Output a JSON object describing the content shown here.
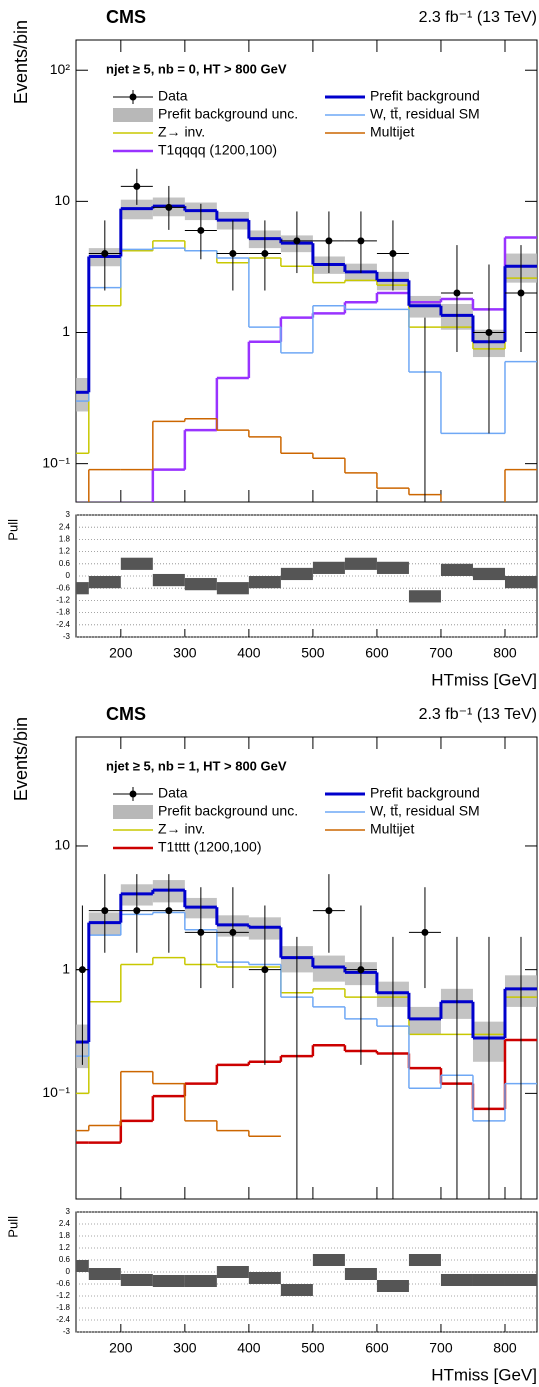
{
  "chart_data": [
    {
      "type": "histogram",
      "experiment": "CMS",
      "lumi": "2.3 fb⁻¹ (13 TeV)",
      "selection": "njet ≥ 5, nb = 0, HT > 800 GeV",
      "ylabel": "Events/bin",
      "xlabel": "HTmiss [GeV]",
      "log_scale": true,
      "bins": [
        130,
        150,
        200,
        250,
        300,
        350,
        400,
        450,
        500,
        550,
        600,
        650,
        700,
        750,
        800,
        850
      ],
      "xlim": [
        130,
        850
      ],
      "xticks": [
        200,
        300,
        400,
        500,
        600,
        700,
        800
      ],
      "ylim": [
        0.051,
        170
      ],
      "yticks": [
        {
          "value": 0.1,
          "label": "10⁻¹"
        },
        1,
        10,
        {
          "value": 100,
          "label": "10²"
        }
      ],
      "data": {
        "name": "Data",
        "color": "#000000",
        "values": [
          null,
          4,
          13,
          9,
          6,
          4,
          4,
          5,
          5,
          5,
          4,
          0,
          2,
          1,
          2
        ],
        "err_low": [
          null,
          1.91,
          3.6,
          2.94,
          2.38,
          1.91,
          1.91,
          2.16,
          2.16,
          2.16,
          1.91,
          0,
          1.29,
          0.83,
          1.29
        ],
        "err_high": [
          null,
          3.16,
          4.7,
          4.11,
          3.58,
          3.16,
          3.16,
          3.38,
          3.38,
          3.38,
          3.16,
          1.3,
          2.64,
          2.3,
          2.64
        ]
      },
      "band": {
        "name": "Prefit background unc.",
        "color": "#b8b8b8",
        "errors": [
          0.1,
          0.6,
          1.5,
          1.5,
          1.3,
          1.1,
          0.8,
          0.7,
          0.5,
          0.45,
          0.4,
          0.3,
          0.3,
          0.2,
          0.8
        ]
      },
      "series": [
        {
          "name": "Prefit background",
          "color": "#0000cc",
          "line_width": 3,
          "values": [
            0.35,
            3.8,
            8.8,
            9.2,
            8.5,
            7.2,
            5.2,
            4.8,
            3.3,
            2.9,
            2.5,
            1.6,
            1.35,
            0.85,
            3.2
          ]
        },
        {
          "name": "W, tt̄, residual SM",
          "color": "#6fa8f5",
          "line_width": 1.5,
          "values": [
            0.3,
            2.2,
            4.3,
            4.4,
            4.2,
            3.7,
            1.1,
            0.7,
            1.6,
            1.5,
            1.5,
            0.5,
            0.17,
            0.17,
            0.6
          ]
        },
        {
          "name": "Z→ inv.",
          "color": "#c8c800",
          "line_width": 1.5,
          "values": [
            0.12,
            1.6,
            4.2,
            5.0,
            4.2,
            3.4,
            3.7,
            3.2,
            2.4,
            2.5,
            2.3,
            1.1,
            1.1,
            0.75,
            2.6
          ]
        },
        {
          "name": "Multijet",
          "color": "#cc6600",
          "line_width": 1.5,
          "values": [
            0.05,
            0.09,
            0.09,
            0.21,
            0.22,
            0.18,
            0.16,
            0.12,
            0.11,
            0.085,
            0.065,
            0.058,
            0.05,
            0.05,
            0.09
          ]
        },
        {
          "name": "T1qqqq (1200,100)",
          "color": "#9933ff",
          "line_width": 2.5,
          "values": [
            0.05,
            0.05,
            0.05,
            0.09,
            0.18,
            0.45,
            0.85,
            1.3,
            1.4,
            1.7,
            2.0,
            1.7,
            1.8,
            1.5,
            5.3
          ]
        }
      ],
      "pull": {
        "ylabel": "Pull",
        "color": "#555555",
        "values": [
          -0.6,
          -0.3,
          0.6,
          -0.2,
          -0.4,
          -0.6,
          -0.3,
          0.1,
          0.4,
          0.6,
          0.4,
          -1.0,
          0.3,
          0.1,
          -0.3
        ],
        "errors": [
          0.3,
          0.3,
          0.3,
          0.3,
          0.3,
          0.3,
          0.3,
          0.3,
          0.3,
          0.3,
          0.3,
          0.3,
          0.3,
          0.3,
          0.3
        ],
        "ylim": [
          -3,
          3
        ],
        "yticks": [
          -3,
          -2.4,
          -1.8,
          -1.2,
          -0.6,
          0,
          0.6,
          1.2,
          1.8,
          2.4,
          3
        ]
      }
    },
    {
      "type": "histogram",
      "experiment": "CMS",
      "lumi": "2.3 fb⁻¹ (13 TeV)",
      "selection": "njet ≥ 5, nb = 1, HT > 800 GeV",
      "ylabel": "Events/bin",
      "xlabel": "HTmiss [GeV]",
      "log_scale": true,
      "bins": [
        130,
        150,
        200,
        250,
        300,
        350,
        400,
        450,
        500,
        550,
        600,
        650,
        700,
        750,
        800,
        850
      ],
      "xlim": [
        130,
        850
      ],
      "xticks": [
        200,
        300,
        400,
        500,
        600,
        700,
        800
      ],
      "ylim": [
        0.014,
        76
      ],
      "yticks": [
        {
          "value": 0.1,
          "label": "10⁻¹"
        },
        1,
        10
      ],
      "data": {
        "name": "Data",
        "color": "#000000",
        "values": [
          1,
          3,
          3,
          3,
          2,
          2,
          1,
          0,
          3,
          1,
          0,
          2,
          0,
          0,
          0
        ],
        "err_low": [
          0.83,
          1.63,
          1.63,
          1.63,
          1.29,
          1.29,
          0.83,
          0,
          1.63,
          0.83,
          0,
          1.29,
          0,
          0,
          0
        ],
        "err_high": [
          2.3,
          2.92,
          2.92,
          2.92,
          2.64,
          2.64,
          2.3,
          1.84,
          2.92,
          2.3,
          1.84,
          2.64,
          1.84,
          1.84,
          1.84
        ]
      },
      "band": {
        "name": "Prefit background unc.",
        "color": "#b8b8b8",
        "errors": [
          0.1,
          0.5,
          0.8,
          0.9,
          0.6,
          0.45,
          0.45,
          0.3,
          0.25,
          0.2,
          0.15,
          0.1,
          0.15,
          0.1,
          0.2
        ]
      },
      "series": [
        {
          "name": "Prefit background",
          "color": "#0000cc",
          "line_width": 3,
          "values": [
            0.26,
            2.4,
            4.1,
            4.4,
            3.2,
            2.3,
            2.2,
            1.25,
            1.05,
            0.95,
            0.65,
            0.4,
            0.55,
            0.28,
            0.7
          ]
        },
        {
          "name": "W, tt̄, residual SM",
          "color": "#6fa8f5",
          "line_width": 1.5,
          "values": [
            0.2,
            1.9,
            2.8,
            2.9,
            2.1,
            1.15,
            1.1,
            0.6,
            0.5,
            0.4,
            0.35,
            0.11,
            0.14,
            0.06,
            0.12
          ]
        },
        {
          "name": "Z→ inv.",
          "color": "#c8c800",
          "line_width": 1.5,
          "values": [
            0.1,
            0.55,
            1.1,
            1.25,
            1.1,
            1.05,
            1.05,
            0.65,
            0.7,
            0.6,
            0.6,
            0.3,
            0.3,
            0.3,
            0.6
          ]
        },
        {
          "name": "Multijet",
          "color": "#cc6600",
          "line_width": 1.5,
          "values": [
            0.05,
            0.055,
            0.15,
            0.12,
            0.06,
            0.05,
            0.045,
            null,
            null,
            null,
            null,
            null,
            null,
            null,
            null
          ]
        },
        {
          "name": "T1tttt (1200,100)",
          "color": "#cc0000",
          "line_width": 2.5,
          "values": [
            0.04,
            0.04,
            0.06,
            0.095,
            0.12,
            0.17,
            0.18,
            0.2,
            0.245,
            0.22,
            0.21,
            0.16,
            0.12,
            0.075,
            0.27
          ]
        }
      ],
      "pull": {
        "ylabel": "Pull",
        "color": "#555555",
        "values": [
          0.3,
          -0.1,
          -0.4,
          -0.45,
          -0.45,
          0,
          -0.3,
          -0.9,
          0.6,
          -0.1,
          -0.7,
          0.6,
          -0.4,
          -0.4,
          -0.4
        ],
        "errors": [
          0.3,
          0.3,
          0.3,
          0.3,
          0.3,
          0.3,
          0.3,
          0.3,
          0.3,
          0.3,
          0.3,
          0.3,
          0.3,
          0.3,
          0.3
        ],
        "ylim": [
          -3,
          3
        ],
        "yticks": [
          -3,
          -2.4,
          -1.8,
          -1.2,
          -0.6,
          0,
          0.6,
          1.2,
          1.8,
          2.4,
          3
        ]
      }
    }
  ]
}
